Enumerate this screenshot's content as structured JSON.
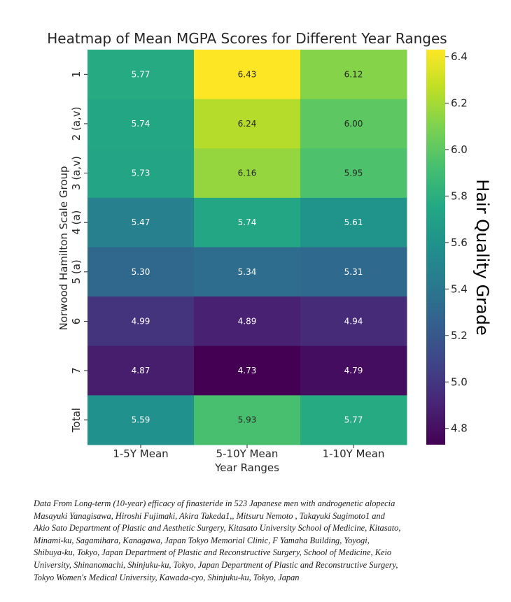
{
  "chart_data": {
    "type": "heatmap",
    "title": "Heatmap of Mean MGPA Scores for Different Year Ranges",
    "xlabel": "Year Ranges",
    "ylabel": "Norwood Hamilton Scale Group",
    "columns": [
      "1-5Y Mean",
      "5-10Y Mean",
      "1-10Y Mean"
    ],
    "rows": [
      "1",
      "2 (a,v)",
      "3 (a,v)",
      "4 (a)",
      "5 (a)",
      "6",
      "7",
      "Total"
    ],
    "values": [
      [
        5.77,
        6.43,
        6.12
      ],
      [
        5.74,
        6.24,
        6.0
      ],
      [
        5.73,
        6.16,
        5.95
      ],
      [
        5.47,
        5.74,
        5.61
      ],
      [
        5.3,
        5.34,
        5.31
      ],
      [
        4.99,
        4.89,
        4.94
      ],
      [
        4.87,
        4.73,
        4.79
      ],
      [
        5.59,
        5.93,
        5.77
      ]
    ],
    "colormap": "viridis",
    "colorbar": {
      "label": "Hair Quality Grade",
      "range": [
        4.73,
        6.43
      ],
      "ticks": [
        4.8,
        5.0,
        5.2,
        5.4,
        5.6,
        5.8,
        6.0,
        6.2,
        6.4
      ]
    }
  },
  "source_note": [
    "Data From Long-term (10-year) efficacy of finasteride in 523 Japanese men with androgenetic alopecia",
    "Masayuki Yanagisawa, Hiroshi Fujimaki, Akira Takeda1,, Mitsuru Nemoto , Takayuki Sugimoto1 and",
    "Akio Sato Department of Plastic and Aesthetic Surgery, Kitasato University School of Medicine, Kitasato,",
    "Minami-ku, Sagamihara, Kanagawa, Japan  Tokyo Memorial Clinic, F Yamaha Building, Yoyogi,",
    "Shibuya-ku, Tokyo, Japan Department of Plastic and Reconstructive Surgery, School of Medicine, Keio",
    "University, Shinanomachi, Shinjuku-ku, Tokyo, Japan Department of Plastic and Reconstructive Surgery,",
    "Tokyo Women's Medical University,  Kawada-cyo, Shinjuku-ku, Tokyo, Japan"
  ]
}
